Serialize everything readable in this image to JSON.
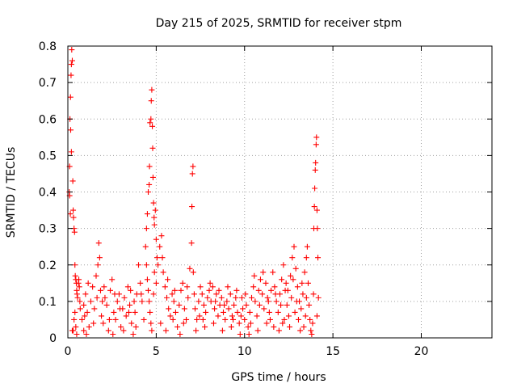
{
  "chart_data": {
    "type": "scatter",
    "title": "Day 215 of 2025, SRMTID for receiver stpm",
    "xlabel": "GPS time / hours",
    "ylabel": "SRMTID / TECUs",
    "xlim": [
      0,
      24
    ],
    "ylim": [
      0,
      0.8
    ],
    "xticks": [
      0,
      5,
      10,
      15,
      20
    ],
    "yticks": [
      0,
      0.1,
      0.2,
      0.3,
      0.4,
      0.5,
      0.6,
      0.7,
      0.8
    ],
    "xtick_labels": [
      "0",
      "5",
      "10",
      "15",
      "20"
    ],
    "ytick_labels": [
      "0",
      "0.1",
      "0.2",
      "0.3",
      "0.4",
      "0.5",
      "0.6",
      "0.7",
      "0.8"
    ],
    "grid": true,
    "marker": "plus",
    "color": "#ff0000",
    "series": [
      {
        "name": "SRMTID",
        "points": [
          [
            0.1,
            0.47
          ],
          [
            0.15,
            0.66
          ],
          [
            0.18,
            0.72
          ],
          [
            0.2,
            0.75
          ],
          [
            0.22,
            0.79
          ],
          [
            0.25,
            0.76
          ],
          [
            0.12,
            0.6
          ],
          [
            0.16,
            0.57
          ],
          [
            0.2,
            0.51
          ],
          [
            0.08,
            0.4
          ],
          [
            0.1,
            0.39
          ],
          [
            0.14,
            0.34
          ],
          [
            0.28,
            0.43
          ],
          [
            0.3,
            0.35
          ],
          [
            0.32,
            0.33
          ],
          [
            0.35,
            0.3
          ],
          [
            0.38,
            0.29
          ],
          [
            0.4,
            0.2
          ],
          [
            0.42,
            0.17
          ],
          [
            0.45,
            0.16
          ],
          [
            0.48,
            0.15
          ],
          [
            0.5,
            0.13
          ],
          [
            0.52,
            0.12
          ],
          [
            0.55,
            0.11
          ],
          [
            0.6,
            0.15
          ],
          [
            0.62,
            0.16
          ],
          [
            0.65,
            0.14
          ],
          [
            0.68,
            0.1
          ],
          [
            0.7,
            0.08
          ],
          [
            0.3,
            0.02
          ],
          [
            0.35,
            0.05
          ],
          [
            0.4,
            0.07
          ],
          [
            0.45,
            0.03
          ],
          [
            0.5,
            0.01
          ],
          [
            0.25,
            0.02
          ],
          [
            0.8,
            0.05
          ],
          [
            0.9,
            0.09
          ],
          [
            1.0,
            0.12
          ],
          [
            1.1,
            0.07
          ],
          [
            1.2,
            0.03
          ],
          [
            1.3,
            0.1
          ],
          [
            1.4,
            0.14
          ],
          [
            1.5,
            0.08
          ],
          [
            1.6,
            0.17
          ],
          [
            1.7,
            0.2
          ],
          [
            1.75,
            0.26
          ],
          [
            1.8,
            0.22
          ],
          [
            1.85,
            0.13
          ],
          [
            1.9,
            0.06
          ],
          [
            2.0,
            0.04
          ],
          [
            2.1,
            0.11
          ],
          [
            2.2,
            0.09
          ],
          [
            2.3,
            0.02
          ],
          [
            2.4,
            0.13
          ],
          [
            2.5,
            0.16
          ],
          [
            2.6,
            0.07
          ],
          [
            2.7,
            0.05
          ],
          [
            2.8,
            0.1
          ],
          [
            2.9,
            0.12
          ],
          [
            3.0,
            0.03
          ],
          [
            3.1,
            0.08
          ],
          [
            3.2,
            0.11
          ],
          [
            3.3,
            0.06
          ],
          [
            3.4,
            0.14
          ],
          [
            3.5,
            0.09
          ],
          [
            3.6,
            0.04
          ],
          [
            3.7,
            0.01
          ],
          [
            3.8,
            0.07
          ],
          [
            3.9,
            0.12
          ],
          [
            4.0,
            0.2
          ],
          [
            4.1,
            0.15
          ],
          [
            4.2,
            0.1
          ],
          [
            4.3,
            0.05
          ],
          [
            0.9,
            0.02
          ],
          [
            1.15,
            0.15
          ],
          [
            1.45,
            0.04
          ],
          [
            2.05,
            0.14
          ],
          [
            2.65,
            0.12
          ],
          [
            3.15,
            0.02
          ],
          [
            3.55,
            0.13
          ],
          [
            3.85,
            0.03
          ],
          [
            1.05,
            0.01
          ],
          [
            1.95,
            0.1
          ],
          [
            2.35,
            0.05
          ],
          [
            2.95,
            0.08
          ],
          [
            3.45,
            0.07
          ],
          [
            4.15,
            0.12
          ],
          [
            1.65,
            0.11
          ],
          [
            0.95,
            0.06
          ],
          [
            2.55,
            0.01
          ],
          [
            3.75,
            0.1
          ],
          [
            4.4,
            0.25
          ],
          [
            4.45,
            0.3
          ],
          [
            4.5,
            0.34
          ],
          [
            4.55,
            0.4
          ],
          [
            4.6,
            0.42
          ],
          [
            4.62,
            0.47
          ],
          [
            4.65,
            0.59
          ],
          [
            4.7,
            0.6
          ],
          [
            4.72,
            0.65
          ],
          [
            4.75,
            0.68
          ],
          [
            4.78,
            0.58
          ],
          [
            4.8,
            0.52
          ],
          [
            4.82,
            0.44
          ],
          [
            4.85,
            0.37
          ],
          [
            4.88,
            0.33
          ],
          [
            4.9,
            0.31
          ],
          [
            4.95,
            0.35
          ],
          [
            5.0,
            0.27
          ],
          [
            5.05,
            0.22
          ],
          [
            4.45,
            0.2
          ],
          [
            4.5,
            0.16
          ],
          [
            4.55,
            0.13
          ],
          [
            4.6,
            0.1
          ],
          [
            4.65,
            0.07
          ],
          [
            4.7,
            0.04
          ],
          [
            4.75,
            0.02
          ],
          [
            4.85,
            0.12
          ],
          [
            4.9,
            0.18
          ],
          [
            5.0,
            0.15
          ],
          [
            5.1,
            0.2
          ],
          [
            5.2,
            0.25
          ],
          [
            5.3,
            0.28
          ],
          [
            5.35,
            0.22
          ],
          [
            5.4,
            0.18
          ],
          [
            5.5,
            0.14
          ],
          [
            5.6,
            0.11
          ],
          [
            5.7,
            0.08
          ],
          [
            5.8,
            0.06
          ],
          [
            5.9,
            0.12
          ],
          [
            6.0,
            0.1
          ],
          [
            6.1,
            0.07
          ],
          [
            6.2,
            0.03
          ],
          [
            6.3,
            0.09
          ],
          [
            6.4,
            0.13
          ],
          [
            6.5,
            0.15
          ],
          [
            6.6,
            0.08
          ],
          [
            6.7,
            0.05
          ],
          [
            6.8,
            0.11
          ],
          [
            6.9,
            0.19
          ],
          [
            7.0,
            0.26
          ],
          [
            7.02,
            0.36
          ],
          [
            7.05,
            0.45
          ],
          [
            7.08,
            0.47
          ],
          [
            7.1,
            0.18
          ],
          [
            7.15,
            0.12
          ],
          [
            7.2,
            0.08
          ],
          [
            7.3,
            0.05
          ],
          [
            7.4,
            0.1
          ],
          [
            7.5,
            0.14
          ],
          [
            5.25,
            0.04
          ],
          [
            5.55,
            0.02
          ],
          [
            5.95,
            0.05
          ],
          [
            6.35,
            0.01
          ],
          [
            6.75,
            0.14
          ],
          [
            7.25,
            0.02
          ],
          [
            5.65,
            0.16
          ],
          [
            6.05,
            0.13
          ],
          [
            6.55,
            0.04
          ],
          [
            7.45,
            0.06
          ],
          [
            7.6,
            0.12
          ],
          [
            7.7,
            0.09
          ],
          [
            7.8,
            0.07
          ],
          [
            7.9,
            0.11
          ],
          [
            8.0,
            0.13
          ],
          [
            8.1,
            0.1
          ],
          [
            8.2,
            0.14
          ],
          [
            8.3,
            0.08
          ],
          [
            8.4,
            0.12
          ],
          [
            8.5,
            0.06
          ],
          [
            8.6,
            0.09
          ],
          [
            8.7,
            0.11
          ],
          [
            8.8,
            0.07
          ],
          [
            8.9,
            0.05
          ],
          [
            9.0,
            0.1
          ],
          [
            9.1,
            0.08
          ],
          [
            9.2,
            0.12
          ],
          [
            9.3,
            0.06
          ],
          [
            9.4,
            0.09
          ],
          [
            9.5,
            0.11
          ],
          [
            9.6,
            0.07
          ],
          [
            9.7,
            0.04
          ],
          [
            9.8,
            0.06
          ],
          [
            9.9,
            0.08
          ],
          [
            10.0,
            0.05
          ],
          [
            10.1,
            0.09
          ],
          [
            10.2,
            0.03
          ],
          [
            10.3,
            0.07
          ],
          [
            10.4,
            0.11
          ],
          [
            10.5,
            0.14
          ],
          [
            10.6,
            0.1
          ],
          [
            10.7,
            0.06
          ],
          [
            10.8,
            0.13
          ],
          [
            10.9,
            0.16
          ],
          [
            11.0,
            0.12
          ],
          [
            11.1,
            0.08
          ],
          [
            11.2,
            0.15
          ],
          [
            11.3,
            0.11
          ],
          [
            11.4,
            0.07
          ],
          [
            11.5,
            0.13
          ],
          [
            7.75,
            0.03
          ],
          [
            8.25,
            0.04
          ],
          [
            8.75,
            0.02
          ],
          [
            9.25,
            0.03
          ],
          [
            9.75,
            0.01
          ],
          [
            10.25,
            0.01
          ],
          [
            10.75,
            0.02
          ],
          [
            11.25,
            0.04
          ],
          [
            8.05,
            0.15
          ],
          [
            8.55,
            0.13
          ],
          [
            9.05,
            0.14
          ],
          [
            9.55,
            0.13
          ],
          [
            10.05,
            0.12
          ],
          [
            10.55,
            0.17
          ],
          [
            11.05,
            0.18
          ],
          [
            7.65,
            0.05
          ],
          [
            8.35,
            0.1
          ],
          [
            8.85,
            0.09
          ],
          [
            9.35,
            0.05
          ],
          [
            9.85,
            0.11
          ],
          [
            10.35,
            0.04
          ],
          [
            10.85,
            0.09
          ],
          [
            11.35,
            0.1
          ],
          [
            11.45,
            0.05
          ],
          [
            11.6,
            0.18
          ],
          [
            11.7,
            0.14
          ],
          [
            11.8,
            0.1
          ],
          [
            11.9,
            0.07
          ],
          [
            12.0,
            0.12
          ],
          [
            12.1,
            0.16
          ],
          [
            12.2,
            0.2
          ],
          [
            12.3,
            0.13
          ],
          [
            12.4,
            0.09
          ],
          [
            12.5,
            0.06
          ],
          [
            12.6,
            0.17
          ],
          [
            12.7,
            0.22
          ],
          [
            12.8,
            0.25
          ],
          [
            12.9,
            0.19
          ],
          [
            13.0,
            0.14
          ],
          [
            13.1,
            0.1
          ],
          [
            13.2,
            0.08
          ],
          [
            13.3,
            0.12
          ],
          [
            13.4,
            0.18
          ],
          [
            13.5,
            0.22
          ],
          [
            13.55,
            0.25
          ],
          [
            13.6,
            0.15
          ],
          [
            13.65,
            0.09
          ],
          [
            13.7,
            0.05
          ],
          [
            13.75,
            0.02
          ],
          [
            13.8,
            0.01
          ],
          [
            13.85,
            0.04
          ],
          [
            13.9,
            0.12
          ],
          [
            13.92,
            0.3
          ],
          [
            13.95,
            0.36
          ],
          [
            13.97,
            0.41
          ],
          [
            14.0,
            0.46
          ],
          [
            14.02,
            0.48
          ],
          [
            14.05,
            0.53
          ],
          [
            14.07,
            0.55
          ],
          [
            14.1,
            0.35
          ],
          [
            14.12,
            0.3
          ],
          [
            14.15,
            0.22
          ],
          [
            14.18,
            0.11
          ],
          [
            14.1,
            0.06
          ],
          [
            11.65,
            0.03
          ],
          [
            11.95,
            0.02
          ],
          [
            12.25,
            0.05
          ],
          [
            12.55,
            0.03
          ],
          [
            12.85,
            0.07
          ],
          [
            13.15,
            0.02
          ],
          [
            13.45,
            0.06
          ],
          [
            12.05,
            0.09
          ],
          [
            12.35,
            0.15
          ],
          [
            12.65,
            0.11
          ],
          [
            12.95,
            0.1
          ],
          [
            13.25,
            0.15
          ],
          [
            13.5,
            0.11
          ],
          [
            11.75,
            0.12
          ],
          [
            12.15,
            0.04
          ],
          [
            12.45,
            0.13
          ],
          [
            12.75,
            0.16
          ],
          [
            13.05,
            0.05
          ],
          [
            13.35,
            0.03
          ]
        ]
      }
    ]
  }
}
